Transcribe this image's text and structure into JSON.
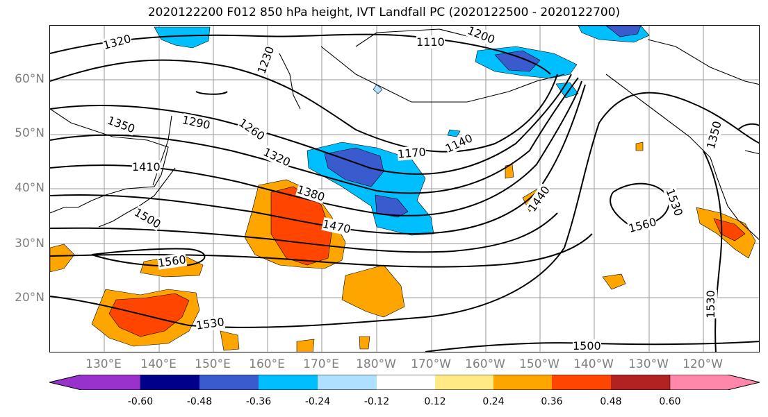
{
  "title": "2020122200 F012 850 hPa height, IVT Landfall PC (2020122500 - 2020122700)",
  "lat_labels": [
    {
      "text": "60°N",
      "lat": 60
    },
    {
      "text": "50°N",
      "lat": 50
    },
    {
      "text": "40°N",
      "lat": 40
    },
    {
      "text": "30°N",
      "lat": 30
    },
    {
      "text": "20°N",
      "lat": 20
    }
  ],
  "lon_labels": [
    "130°E",
    "140°E",
    "150°E",
    "160°E",
    "170°E",
    "180°W",
    "170°W",
    "160°W",
    "150°W",
    "140°W",
    "130°W",
    "120°W"
  ],
  "contour_labels": [
    "1320",
    "1230",
    "1200",
    "1110",
    "1350",
    "1290",
    "1260",
    "1170",
    "1140",
    "1410",
    "1320",
    "1380",
    "1500",
    "1470",
    "1440",
    "1560",
    "1530",
    "1560",
    "1530",
    "1530",
    "1500",
    "1350"
  ],
  "colorbar": {
    "ticks": [
      "-0.60",
      "-0.48",
      "-0.36",
      "-0.24",
      "-0.12",
      "0.12",
      "0.24",
      "0.36",
      "0.48",
      "0.60"
    ],
    "colors": [
      "#9932cc",
      "#00008b",
      "#3a5bcd",
      "#00bfff",
      "#b0e0ff",
      "#ffffff",
      "#ffea85",
      "#ffa500",
      "#ff4500",
      "#b22222",
      "#ff88aa"
    ]
  },
  "map_colors": {
    "ocean": "#ffffff",
    "coast": "#000000",
    "grid": "#999999"
  }
}
